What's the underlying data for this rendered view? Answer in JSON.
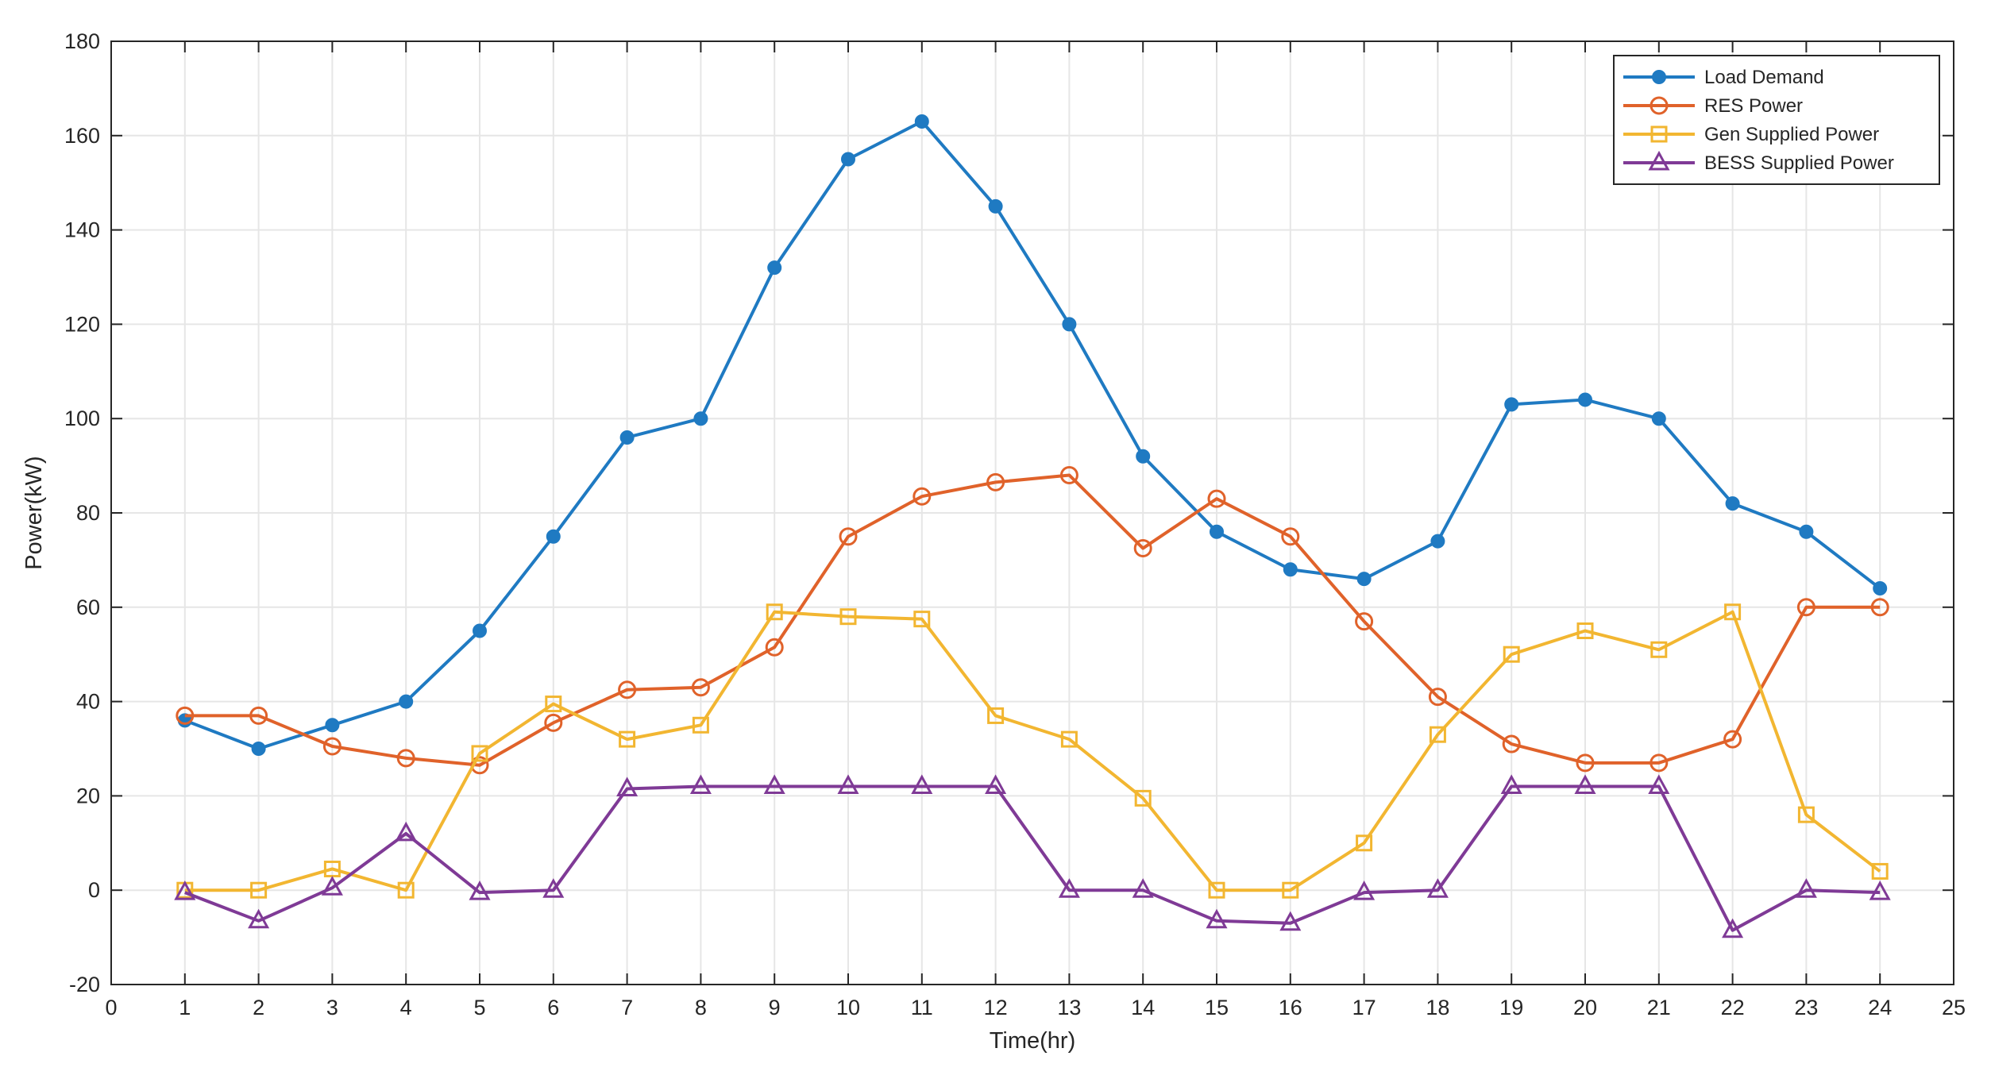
{
  "chart_data": {
    "type": "line",
    "title": "",
    "xlabel": "Time(hr)",
    "ylabel": "Power(kW)",
    "xlim": [
      0,
      25
    ],
    "ylim": [
      -20,
      180
    ],
    "xticks": [
      0,
      1,
      2,
      3,
      4,
      5,
      6,
      7,
      8,
      9,
      10,
      11,
      12,
      13,
      14,
      15,
      16,
      17,
      18,
      19,
      20,
      21,
      22,
      23,
      24,
      25
    ],
    "yticks": [
      -20,
      0,
      20,
      40,
      60,
      80,
      100,
      120,
      140,
      160,
      180
    ],
    "grid": true,
    "legend_position": "top-right",
    "x": [
      1,
      2,
      3,
      4,
      5,
      6,
      7,
      8,
      9,
      10,
      11,
      12,
      13,
      14,
      15,
      16,
      17,
      18,
      19,
      20,
      21,
      22,
      23,
      24
    ],
    "series": [
      {
        "name": "Load Demand",
        "color": "#1f7ac2",
        "marker": "filled-circle",
        "values": [
          36,
          30,
          35,
          40,
          55,
          75,
          96,
          100,
          132,
          155,
          163,
          145,
          120,
          92,
          76,
          68,
          66,
          74,
          103,
          104,
          100,
          82,
          76,
          64
        ]
      },
      {
        "name": "RES Power",
        "color": "#e0622a",
        "marker": "open-circle",
        "values": [
          37,
          37,
          30.5,
          28,
          26.5,
          35.5,
          42.5,
          43,
          51.5,
          75,
          83.5,
          86.5,
          88,
          72.5,
          83,
          75,
          57,
          41,
          31,
          27,
          27,
          32,
          60,
          60
        ]
      },
      {
        "name": "Gen Supplied Power",
        "color": "#f2b631",
        "marker": "open-square",
        "values": [
          0,
          0,
          4.5,
          0,
          29,
          39.5,
          32,
          35,
          59,
          58,
          57.5,
          37,
          32,
          19.5,
          0,
          0,
          10,
          33,
          50,
          55,
          51,
          59,
          16,
          4
        ]
      },
      {
        "name": "BESS Supplied Power",
        "color": "#7f3a96",
        "marker": "open-triangle",
        "values": [
          -0.5,
          -6.5,
          0.5,
          12,
          -0.5,
          0,
          21.5,
          22,
          22,
          22,
          22,
          22,
          0,
          0,
          -6.5,
          -7,
          -0.5,
          0,
          22,
          22,
          22,
          -8.5,
          0,
          -0.5
        ]
      }
    ]
  }
}
